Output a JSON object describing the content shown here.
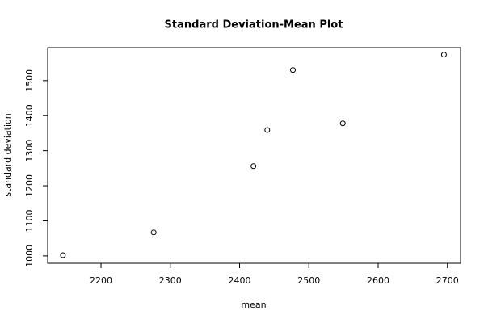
{
  "chart_data": {
    "type": "scatter",
    "title": "Standard Deviation-Mean Plot",
    "xlabel": "mean",
    "ylabel": "standard deviation",
    "x": [
      2145,
      2276,
      2420,
      2440,
      2477,
      2549,
      2695
    ],
    "values": [
      1002,
      1067,
      1256,
      1359,
      1530,
      1378,
      1574
    ],
    "color": "#000000",
    "xlim": [
      2123,
      2719
    ],
    "ylim": [
      979,
      1594
    ],
    "xticks": [
      2200,
      2300,
      2400,
      2500,
      2600,
      2700
    ],
    "yticks": [
      1000,
      1100,
      1200,
      1300,
      1400,
      1500
    ]
  }
}
